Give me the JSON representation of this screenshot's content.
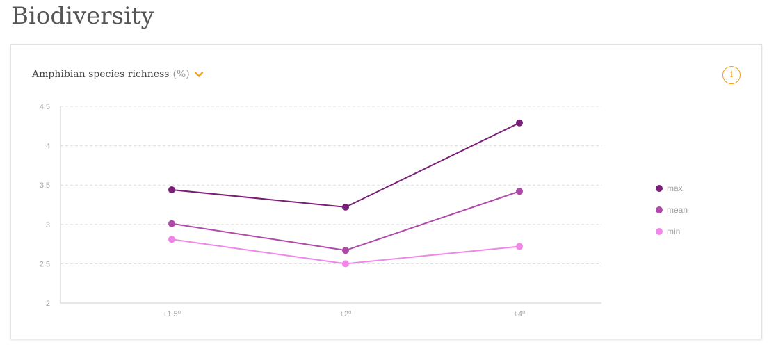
{
  "page": {
    "title": "Biodiversity"
  },
  "panel": {
    "metric_label": "Amphibian species richness",
    "metric_unit": "(%)",
    "info_icon_text": "i"
  },
  "colors": {
    "accent": "#f0a01a",
    "max": "#7a1f77",
    "mean": "#b04aaa",
    "min": "#ef86e8",
    "grid": "#dddddd",
    "axis": "#cccccc"
  },
  "chart_data": {
    "type": "line",
    "title": "",
    "xlabel": "",
    "ylabel": "",
    "categories": [
      "+1.5⁰",
      "+2⁰",
      "+4⁰"
    ],
    "ylim": [
      2,
      4.5
    ],
    "yticks": [
      "2",
      "2.5",
      "3",
      "3.5",
      "4",
      "4.5"
    ],
    "grid": true,
    "legend_position": "right",
    "series": [
      {
        "name": "max",
        "color": "#7a1f77",
        "values": [
          3.44,
          3.22,
          4.29
        ]
      },
      {
        "name": "mean",
        "color": "#b04aaa",
        "values": [
          3.01,
          2.67,
          3.42
        ]
      },
      {
        "name": "min",
        "color": "#ef86e8",
        "values": [
          2.81,
          2.5,
          2.72
        ]
      }
    ]
  }
}
